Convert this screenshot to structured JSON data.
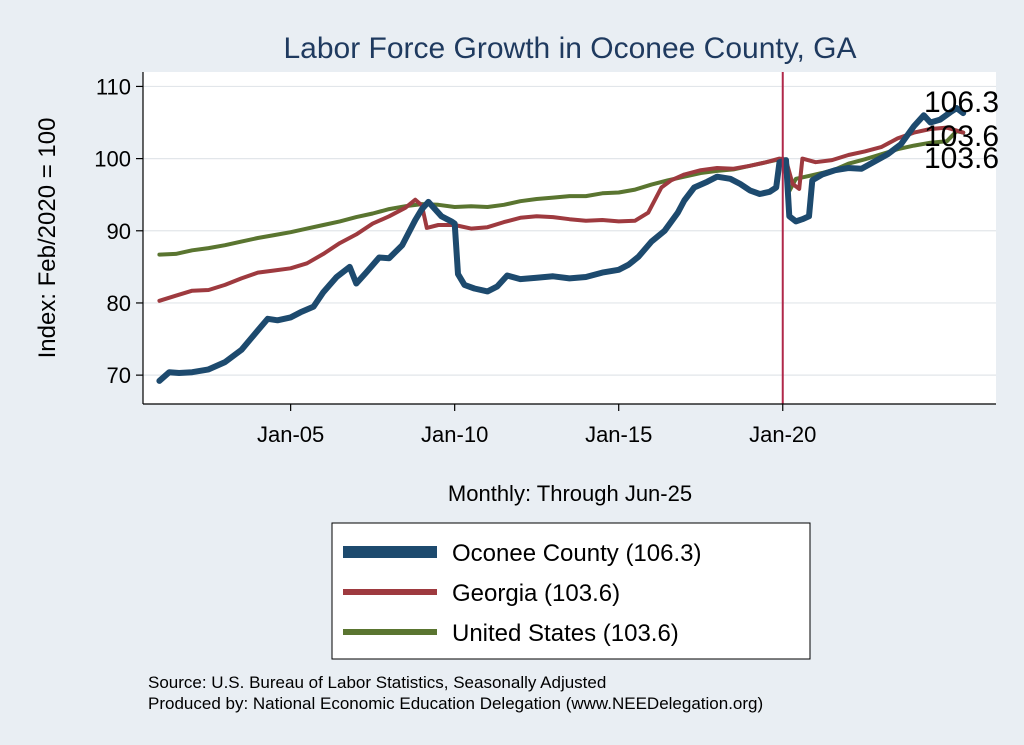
{
  "chart_data": {
    "type": "line",
    "title": "Labor Force Growth in Oconee  County, GA",
    "ylabel": "Index: Feb/2020 = 100",
    "xnote": "Monthly: Through Jun-25",
    "ylim": [
      66,
      112
    ],
    "xlim": [
      2000.5,
      2026.5
    ],
    "yticks": [
      70,
      80,
      90,
      100,
      110
    ],
    "xticks": [
      {
        "year": 2005,
        "label": "Jan-05"
      },
      {
        "year": 2010,
        "label": "Jan-10"
      },
      {
        "year": 2015,
        "label": "Jan-15"
      },
      {
        "year": 2020,
        "label": "Jan-20"
      }
    ],
    "reference_line": {
      "x": 2020.0,
      "color": "#b0284a"
    },
    "grid": true,
    "legend_position": "bottom",
    "series": [
      {
        "name": "Oconee  County (106.3)",
        "color": "#1d4a6e",
        "end_label": "106.3",
        "points": [
          [
            2001.0,
            69.2
          ],
          [
            2001.3,
            70.4
          ],
          [
            2001.6,
            70.3
          ],
          [
            2002.0,
            70.4
          ],
          [
            2002.5,
            70.8
          ],
          [
            2003.0,
            71.8
          ],
          [
            2003.5,
            73.5
          ],
          [
            2004.0,
            76.2
          ],
          [
            2004.3,
            77.8
          ],
          [
            2004.6,
            77.6
          ],
          [
            2005.0,
            78.0
          ],
          [
            2005.3,
            78.7
          ],
          [
            2005.7,
            79.5
          ],
          [
            2006.0,
            81.5
          ],
          [
            2006.4,
            83.6
          ],
          [
            2006.8,
            85.0
          ],
          [
            2007.0,
            82.7
          ],
          [
            2007.3,
            84.2
          ],
          [
            2007.7,
            86.3
          ],
          [
            2008.0,
            86.2
          ],
          [
            2008.4,
            88.0
          ],
          [
            2008.8,
            91.5
          ],
          [
            2009.0,
            93.0
          ],
          [
            2009.2,
            94.0
          ],
          [
            2009.6,
            92.0
          ],
          [
            2009.9,
            91.3
          ],
          [
            2010.0,
            91.0
          ],
          [
            2010.1,
            84.0
          ],
          [
            2010.3,
            82.5
          ],
          [
            2010.6,
            82.0
          ],
          [
            2011.0,
            81.6
          ],
          [
            2011.3,
            82.3
          ],
          [
            2011.6,
            83.8
          ],
          [
            2012.0,
            83.3
          ],
          [
            2012.5,
            83.5
          ],
          [
            2013.0,
            83.7
          ],
          [
            2013.5,
            83.4
          ],
          [
            2014.0,
            83.6
          ],
          [
            2014.5,
            84.2
          ],
          [
            2015.0,
            84.6
          ],
          [
            2015.3,
            85.3
          ],
          [
            2015.6,
            86.4
          ],
          [
            2016.0,
            88.5
          ],
          [
            2016.4,
            90.0
          ],
          [
            2016.8,
            92.5
          ],
          [
            2017.0,
            94.2
          ],
          [
            2017.3,
            96.0
          ],
          [
            2017.7,
            96.8
          ],
          [
            2018.0,
            97.5
          ],
          [
            2018.4,
            97.2
          ],
          [
            2018.7,
            96.5
          ],
          [
            2019.0,
            95.6
          ],
          [
            2019.3,
            95.1
          ],
          [
            2019.6,
            95.4
          ],
          [
            2019.8,
            96.0
          ],
          [
            2019.9,
            99.5
          ],
          [
            2020.1,
            99.8
          ],
          [
            2020.2,
            92.0
          ],
          [
            2020.4,
            91.3
          ],
          [
            2020.6,
            91.6
          ],
          [
            2020.8,
            92.0
          ],
          [
            2020.9,
            97.0
          ],
          [
            2021.2,
            97.8
          ],
          [
            2021.6,
            98.4
          ],
          [
            2022.0,
            98.7
          ],
          [
            2022.4,
            98.6
          ],
          [
            2022.8,
            99.6
          ],
          [
            2023.2,
            100.6
          ],
          [
            2023.6,
            102.0
          ],
          [
            2024.0,
            104.5
          ],
          [
            2024.3,
            106.0
          ],
          [
            2024.5,
            105.0
          ],
          [
            2024.8,
            105.4
          ],
          [
            2025.1,
            106.4
          ],
          [
            2025.3,
            107.0
          ],
          [
            2025.5,
            106.3
          ]
        ]
      },
      {
        "name": "Georgia (103.6)",
        "color": "#9e3a3f",
        "end_label": "103.6",
        "points": [
          [
            2001.0,
            80.3
          ],
          [
            2001.5,
            81.0
          ],
          [
            2002.0,
            81.7
          ],
          [
            2002.5,
            81.8
          ],
          [
            2003.0,
            82.5
          ],
          [
            2003.5,
            83.4
          ],
          [
            2004.0,
            84.2
          ],
          [
            2004.5,
            84.5
          ],
          [
            2005.0,
            84.8
          ],
          [
            2005.5,
            85.5
          ],
          [
            2006.0,
            86.8
          ],
          [
            2006.5,
            88.3
          ],
          [
            2007.0,
            89.5
          ],
          [
            2007.5,
            91.0
          ],
          [
            2008.0,
            92.0
          ],
          [
            2008.5,
            93.2
          ],
          [
            2008.8,
            94.3
          ],
          [
            2009.0,
            93.5
          ],
          [
            2009.15,
            90.4
          ],
          [
            2009.5,
            90.8
          ],
          [
            2010.0,
            90.8
          ],
          [
            2010.5,
            90.3
          ],
          [
            2011.0,
            90.5
          ],
          [
            2011.5,
            91.2
          ],
          [
            2012.0,
            91.8
          ],
          [
            2012.5,
            92.0
          ],
          [
            2013.0,
            91.9
          ],
          [
            2013.5,
            91.6
          ],
          [
            2014.0,
            91.4
          ],
          [
            2014.5,
            91.5
          ],
          [
            2015.0,
            91.3
          ],
          [
            2015.5,
            91.4
          ],
          [
            2015.9,
            92.5
          ],
          [
            2016.3,
            96.0
          ],
          [
            2016.6,
            97.0
          ],
          [
            2017.0,
            97.8
          ],
          [
            2017.5,
            98.4
          ],
          [
            2018.0,
            98.7
          ],
          [
            2018.5,
            98.6
          ],
          [
            2019.0,
            99.0
          ],
          [
            2019.5,
            99.5
          ],
          [
            2019.9,
            100.0
          ],
          [
            2020.1,
            99.8
          ],
          [
            2020.3,
            96.5
          ],
          [
            2020.5,
            95.8
          ],
          [
            2020.6,
            100.0
          ],
          [
            2021.0,
            99.5
          ],
          [
            2021.5,
            99.8
          ],
          [
            2022.0,
            100.5
          ],
          [
            2022.5,
            101.0
          ],
          [
            2023.0,
            101.6
          ],
          [
            2023.5,
            102.8
          ],
          [
            2024.0,
            103.6
          ],
          [
            2024.5,
            104.1
          ],
          [
            2025.0,
            104.3
          ],
          [
            2025.5,
            103.6
          ]
        ]
      },
      {
        "name": "United States (103.6)",
        "color": "#5a7530",
        "end_label": "103.6",
        "points": [
          [
            2001.0,
            86.7
          ],
          [
            2001.5,
            86.8
          ],
          [
            2002.0,
            87.3
          ],
          [
            2002.5,
            87.6
          ],
          [
            2003.0,
            88.0
          ],
          [
            2003.5,
            88.5
          ],
          [
            2004.0,
            89.0
          ],
          [
            2004.5,
            89.4
          ],
          [
            2005.0,
            89.8
          ],
          [
            2005.5,
            90.3
          ],
          [
            2006.0,
            90.8
          ],
          [
            2006.5,
            91.3
          ],
          [
            2007.0,
            91.9
          ],
          [
            2007.5,
            92.4
          ],
          [
            2008.0,
            93.0
          ],
          [
            2008.5,
            93.4
          ],
          [
            2009.0,
            93.7
          ],
          [
            2009.5,
            93.6
          ],
          [
            2010.0,
            93.3
          ],
          [
            2010.5,
            93.4
          ],
          [
            2011.0,
            93.3
          ],
          [
            2011.5,
            93.6
          ],
          [
            2012.0,
            94.1
          ],
          [
            2012.5,
            94.4
          ],
          [
            2013.0,
            94.6
          ],
          [
            2013.5,
            94.8
          ],
          [
            2014.0,
            94.8
          ],
          [
            2014.5,
            95.2
          ],
          [
            2015.0,
            95.3
          ],
          [
            2015.5,
            95.7
          ],
          [
            2016.0,
            96.4
          ],
          [
            2016.5,
            97.0
          ],
          [
            2017.0,
            97.5
          ],
          [
            2017.5,
            98.0
          ],
          [
            2018.0,
            98.3
          ],
          [
            2018.5,
            98.5
          ],
          [
            2019.0,
            99.0
          ],
          [
            2019.5,
            99.5
          ],
          [
            2020.0,
            100.0
          ],
          [
            2020.2,
            95.5
          ],
          [
            2020.4,
            97.2
          ],
          [
            2020.8,
            97.6
          ],
          [
            2021.2,
            98.0
          ],
          [
            2021.6,
            98.5
          ],
          [
            2022.0,
            99.3
          ],
          [
            2022.5,
            99.9
          ],
          [
            2023.0,
            100.6
          ],
          [
            2023.5,
            101.3
          ],
          [
            2024.0,
            101.8
          ],
          [
            2024.5,
            102.2
          ],
          [
            2025.0,
            102.4
          ],
          [
            2025.3,
            103.8
          ],
          [
            2025.5,
            103.6
          ]
        ]
      }
    ]
  },
  "source_lines": [
    "Source: U.S. Bureau of Labor Statistics, Seasonally Adjusted",
    "Produced by: National Economic Education Delegation (www.NEEDelegation.org)"
  ]
}
